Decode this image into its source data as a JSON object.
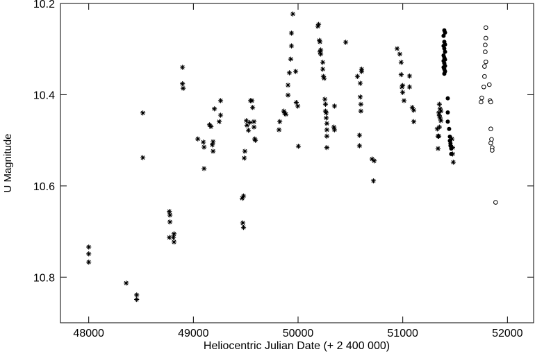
{
  "chart_data": {
    "type": "scatter",
    "x_label": "Heliocentric Julian Date (+ 2 400 000)",
    "y_label": "U Magnitude",
    "xlim": [
      47730,
      52250
    ],
    "ylim": [
      10.2,
      10.9
    ],
    "y_inverted": true,
    "xticks": [
      48000,
      49000,
      50000,
      51000,
      52000
    ],
    "yticks": [
      10.2,
      10.4,
      10.6,
      10.8
    ],
    "grid": false,
    "series": [
      {
        "marker": "asterisk",
        "color": "#000000",
        "x": [
          48000,
          48000,
          48000,
          48358,
          48458,
          48458,
          48517,
          48517,
          48770,
          48776,
          48776,
          48770,
          48809,
          48815,
          48815,
          48896,
          48896,
          48902,
          49042,
          49095,
          49102,
          49102,
          49154,
          49168,
          49181,
          49188,
          49188,
          49201,
          49247,
          49260,
          49260,
          49466,
          49479,
          49472,
          49479,
          49486,
          49492,
          49506,
          49512,
          49526,
          49539,
          49546,
          49559,
          49566,
          49579,
          49579,
          49586,
          49592,
          49818,
          49825,
          49864,
          49870,
          49884,
          49904,
          49904,
          49917,
          49930,
          49937,
          49937,
          49950,
          49977,
          49983,
          49997,
          50003,
          50189,
          50196,
          50203,
          50209,
          50216,
          50209,
          50216,
          50236,
          50236,
          50242,
          50249,
          50256,
          50262,
          50262,
          50269,
          50269,
          50275,
          50275,
          50275,
          50275,
          50348,
          50342,
          50348,
          50455,
          50567,
          50594,
          50594,
          50600,
          50600,
          50587,
          50587,
          50607,
          50607,
          50707,
          50727,
          50720,
          50946,
          50972,
          50985,
          50985,
          50992,
          50999,
          50999,
          51012,
          51065,
          51065,
          51091,
          51105,
          51105,
          51330,
          51337,
          51337,
          51350,
          51357,
          51344,
          51364,
          51350,
          51357,
          51364,
          51350,
          51344,
          51470,
          51476,
          51476,
          51483
        ],
        "values": [
          10.734,
          10.749,
          10.767,
          10.813,
          10.839,
          10.849,
          10.44,
          10.538,
          10.656,
          10.664,
          10.679,
          10.713,
          10.713,
          10.723,
          10.705,
          10.34,
          10.376,
          10.386,
          10.497,
          10.504,
          10.515,
          10.562,
          10.466,
          10.47,
          10.51,
          10.503,
          10.524,
          10.431,
          10.459,
          10.445,
          10.413,
          10.627,
          10.622,
          10.681,
          10.691,
          10.539,
          10.524,
          10.457,
          10.467,
          10.478,
          10.461,
          10.413,
          10.413,
          10.428,
          10.459,
          10.471,
          10.497,
          10.5,
          10.477,
          10.459,
          10.436,
          10.44,
          10.443,
          10.401,
          10.379,
          10.352,
          10.322,
          10.293,
          10.265,
          10.223,
          10.349,
          10.417,
          10.425,
          10.513,
          10.25,
          10.246,
          10.281,
          10.284,
          10.302,
          10.306,
          10.311,
          10.329,
          10.344,
          10.36,
          10.364,
          10.41,
          10.421,
          10.436,
          10.44,
          10.451,
          10.463,
          10.477,
          10.491,
          10.516,
          10.425,
          10.471,
          10.477,
          10.285,
          10.36,
          10.375,
          10.405,
          10.421,
          10.436,
          10.489,
          10.512,
          10.344,
          10.349,
          10.541,
          10.545,
          10.589,
          10.299,
          10.311,
          10.329,
          10.356,
          10.383,
          10.38,
          10.395,
          10.413,
          10.359,
          10.383,
          10.428,
          10.434,
          10.459,
          10.475,
          10.491,
          10.518,
          10.421,
          10.431,
          10.44,
          10.436,
          10.446,
          10.451,
          10.457,
          10.471,
          10.491,
          10.497,
          10.516,
          10.53,
          10.548
        ]
      },
      {
        "marker": "filled-circle",
        "color": "#000000",
        "x": [
          51397,
          51404,
          51390,
          51397,
          51404,
          51390,
          51397,
          51404,
          51390,
          51397,
          51404,
          51390,
          51397,
          51404,
          51390,
          51397,
          51404,
          51397,
          51430,
          51430,
          51430,
          51443,
          51450,
          51450,
          51456,
          51456,
          51463,
          51463
        ],
        "values": [
          10.259,
          10.264,
          10.271,
          10.284,
          10.29,
          10.293,
          10.299,
          10.306,
          10.314,
          10.319,
          10.323,
          10.326,
          10.331,
          10.337,
          10.34,
          10.344,
          10.349,
          10.354,
          10.408,
          10.439,
          10.459,
          10.475,
          10.492,
          10.501,
          10.507,
          10.512,
          10.518,
          10.53
        ]
      },
      {
        "marker": "open-circle",
        "color": "#000000",
        "x": [
          51794,
          51794,
          51788,
          51788,
          51794,
          51781,
          51781,
          51774,
          51755,
          51748,
          51827,
          51834,
          51841,
          51841,
          51848,
          51841,
          51854,
          51854,
          51887
        ],
        "values": [
          10.253,
          10.276,
          10.291,
          10.306,
          10.328,
          10.338,
          10.36,
          10.383,
          10.407,
          10.416,
          10.378,
          10.413,
          10.416,
          10.475,
          10.498,
          10.506,
          10.516,
          10.522,
          10.636
        ]
      }
    ]
  }
}
